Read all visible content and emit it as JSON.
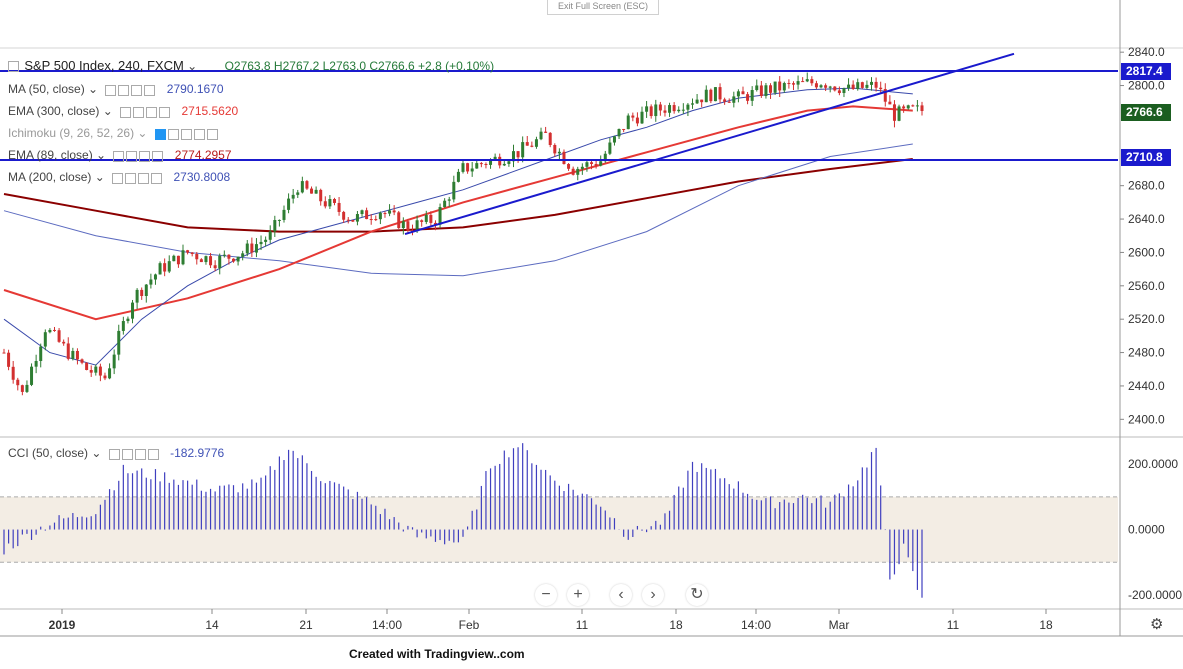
{
  "exit_fullscreen": "Exit Full Screen (ESC)",
  "footer": "Created with Tradingview..com",
  "header": {
    "symbol": "S&P 500 Index, 240, FXCM",
    "ohlc": "O2763.8  H2767.2  L2763.0  C2766.6  +2.8 (+0.10%)"
  },
  "indicators": [
    {
      "label": "MA (50, close)",
      "value": "2790.1670",
      "color": "#3f51b5"
    },
    {
      "label": "EMA (300, close)",
      "value": "2715.5620",
      "color": "#e53935"
    },
    {
      "label": "Ichimoku (9, 26, 52, 26)",
      "value": "",
      "color": "#888888"
    },
    {
      "label": "EMA (89, close)",
      "value": "2774.2957",
      "color": "#b71c1c"
    },
    {
      "label": "MA (200, close)",
      "value": "2730.8008",
      "color": "#3f51b5"
    }
  ],
  "cci_legend": {
    "label": "CCI (50, close)",
    "value": "-182.9776"
  },
  "price_tags": {
    "last": "2766.6",
    "upper_line": "2817.4",
    "lower_line": "2710.8"
  },
  "zoom_controls": {
    "minus": "−",
    "plus": "+",
    "left": "‹",
    "right": "›",
    "reset": "↻"
  },
  "settings_icon": "gear-icon",
  "chart_data": [
    {
      "type": "candlestick",
      "title": "S&P 500 Index, 240, FXCM",
      "x_tick_labels": [
        "2019",
        "14",
        "21",
        "14:00",
        "Feb",
        "11",
        "18",
        "14:00",
        "Mar",
        "11",
        "18"
      ],
      "y_ticks": [
        2400,
        2440,
        2480,
        2520,
        2560,
        2600,
        2640,
        2680,
        2800,
        2840
      ],
      "ylim": [
        2380,
        2845
      ],
      "horizontal_levels": [
        2817.4,
        2710.8
      ],
      "last_price": 2766.6,
      "close_path": [
        [
          0,
          2480
        ],
        [
          4,
          2430
        ],
        [
          9,
          2510
        ],
        [
          14,
          2480
        ],
        [
          18,
          2460
        ],
        [
          22,
          2450
        ],
        [
          28,
          2545
        ],
        [
          34,
          2580
        ],
        [
          40,
          2600
        ],
        [
          46,
          2590
        ],
        [
          52,
          2600
        ],
        [
          58,
          2620
        ],
        [
          64,
          2680
        ],
        [
          70,
          2660
        ],
        [
          76,
          2640
        ],
        [
          82,
          2650
        ],
        [
          88,
          2630
        ],
        [
          94,
          2640
        ],
        [
          100,
          2700
        ],
        [
          106,
          2710
        ],
        [
          112,
          2720
        ],
        [
          118,
          2740
        ],
        [
          124,
          2700
        ],
        [
          130,
          2710
        ],
        [
          136,
          2760
        ],
        [
          142,
          2770
        ],
        [
          148,
          2780
        ],
        [
          154,
          2790
        ],
        [
          160,
          2785
        ],
        [
          166,
          2795
        ],
        [
          172,
          2800
        ],
        [
          178,
          2805
        ],
        [
          184,
          2795
        ],
        [
          190,
          2800
        ],
        [
          194,
          2765
        ],
        [
          198,
          2770
        ]
      ],
      "series": [
        {
          "name": "MA (50, close)",
          "last": 2790.167
        },
        {
          "name": "EMA (300, close)",
          "last": 2715.562
        },
        {
          "name": "EMA (89, close)",
          "last": 2774.2957
        },
        {
          "name": "MA (200, close)",
          "last": 2730.8008
        }
      ],
      "trendline": {
        "from": [
          2640,
          "Jan 23"
        ],
        "to": [
          2845,
          "Mar 15"
        ]
      }
    },
    {
      "type": "bar",
      "title": "CCI (50, close)",
      "y_ticks": [
        -200,
        0,
        200
      ],
      "y_tick_labels": [
        "-200.0000",
        "0.0000",
        "200.0000"
      ],
      "bands": [
        -100,
        100
      ],
      "ylim": [
        -240,
        280
      ],
      "last_value": -182.9776,
      "values_profile": [
        [
          0,
          -60
        ],
        [
          10,
          20
        ],
        [
          20,
          60
        ],
        [
          26,
          180
        ],
        [
          36,
          160
        ],
        [
          46,
          120
        ],
        [
          56,
          140
        ],
        [
          62,
          250
        ],
        [
          70,
          150
        ],
        [
          80,
          80
        ],
        [
          90,
          -20
        ],
        [
          100,
          -40
        ],
        [
          106,
          200
        ],
        [
          112,
          260
        ],
        [
          120,
          150
        ],
        [
          130,
          80
        ],
        [
          136,
          -20
        ],
        [
          144,
          30
        ],
        [
          150,
          200
        ],
        [
          158,
          150
        ],
        [
          166,
          80
        ],
        [
          174,
          100
        ],
        [
          180,
          80
        ],
        [
          186,
          160
        ],
        [
          190,
          250
        ],
        [
          193,
          -150
        ],
        [
          196,
          -60
        ],
        [
          200,
          -220
        ]
      ]
    }
  ]
}
